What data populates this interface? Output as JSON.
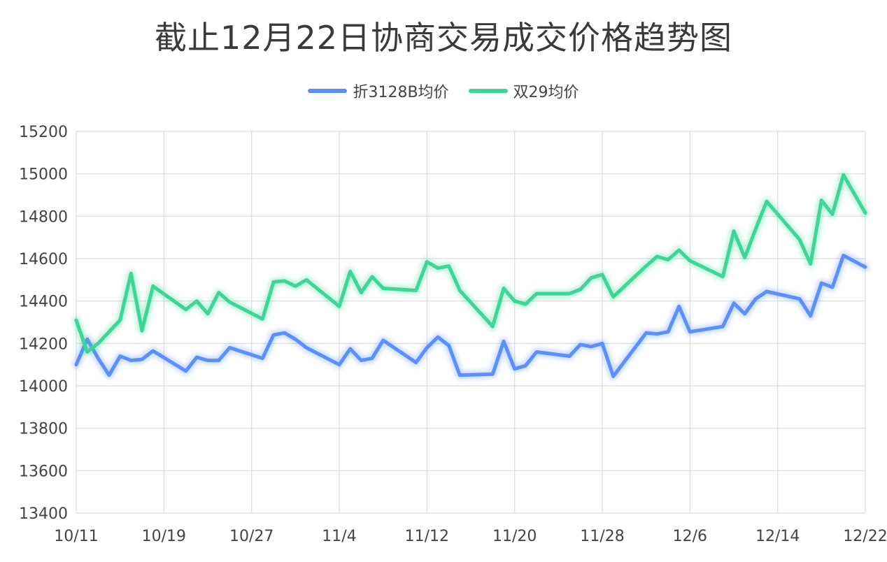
{
  "chart_data": {
    "type": "line",
    "title": "截止12月22日协商交易成交价格趋势图",
    "ylim": [
      13400,
      15200
    ],
    "yticks": [
      13400,
      13600,
      13800,
      14000,
      14200,
      14400,
      14600,
      14800,
      15000,
      15200
    ],
    "xlim": [
      "10/11",
      "12/22"
    ],
    "xticks": [
      "10/11",
      "10/19",
      "10/27",
      "11/4",
      "11/12",
      "11/20",
      "11/28",
      "12/6",
      "12/14",
      "12/22"
    ],
    "grid": true,
    "legend_position": "top-center",
    "series": [
      {
        "name": "折3128B均价",
        "color": "#5b8ff9",
        "points": [
          [
            "10/11",
            14100
          ],
          [
            "10/12",
            14220
          ],
          [
            "10/13",
            14130
          ],
          [
            "10/14",
            14050
          ],
          [
            "10/15",
            14140
          ],
          [
            "10/16",
            14120
          ],
          [
            "10/17",
            14125
          ],
          [
            "10/18",
            14165
          ],
          [
            "10/21",
            14070
          ],
          [
            "10/22",
            14135
          ],
          [
            "10/23",
            14120
          ],
          [
            "10/24",
            14120
          ],
          [
            "10/25",
            14180
          ],
          [
            "10/28",
            14130
          ],
          [
            "10/29",
            14240
          ],
          [
            "10/30",
            14250
          ],
          [
            "10/31",
            14220
          ],
          [
            "11/1",
            14180
          ],
          [
            "11/4",
            14100
          ],
          [
            "11/5",
            14175
          ],
          [
            "11/6",
            14120
          ],
          [
            "11/7",
            14130
          ],
          [
            "11/8",
            14215
          ],
          [
            "11/11",
            14110
          ],
          [
            "11/12",
            14180
          ],
          [
            "11/13",
            14230
          ],
          [
            "11/14",
            14190
          ],
          [
            "11/15",
            14050
          ],
          [
            "11/18",
            14055
          ],
          [
            "11/19",
            14210
          ],
          [
            "11/20",
            14080
          ],
          [
            "11/21",
            14095
          ],
          [
            "11/22",
            14160
          ],
          [
            "11/25",
            14140
          ],
          [
            "11/26",
            14195
          ],
          [
            "11/27",
            14185
          ],
          [
            "11/28",
            14200
          ],
          [
            "11/29",
            14045
          ],
          [
            "12/2",
            14250
          ],
          [
            "12/3",
            14245
          ],
          [
            "12/4",
            14255
          ],
          [
            "12/5",
            14375
          ],
          [
            "12/6",
            14255
          ],
          [
            "12/9",
            14280
          ],
          [
            "12/10",
            14390
          ],
          [
            "12/11",
            14340
          ],
          [
            "12/12",
            14410
          ],
          [
            "12/13",
            14445
          ],
          [
            "12/16",
            14410
          ],
          [
            "12/17",
            14330
          ],
          [
            "12/18",
            14485
          ],
          [
            "12/19",
            14465
          ],
          [
            "12/20",
            14615
          ],
          [
            "12/23",
            14560
          ]
        ]
      },
      {
        "name": "双29均价",
        "color": "#3dd598",
        "points": [
          [
            "10/11",
            14310
          ],
          [
            "10/12",
            14160
          ],
          [
            "10/13",
            14200
          ],
          [
            "10/15",
            14310
          ],
          [
            "10/16",
            14530
          ],
          [
            "10/17",
            14260
          ],
          [
            "10/18",
            14470
          ],
          [
            "10/21",
            14360
          ],
          [
            "10/22",
            14400
          ],
          [
            "10/23",
            14340
          ],
          [
            "10/24",
            14440
          ],
          [
            "10/25",
            14395
          ],
          [
            "10/28",
            14315
          ],
          [
            "10/29",
            14490
          ],
          [
            "10/30",
            14495
          ],
          [
            "10/31",
            14470
          ],
          [
            "11/1",
            14500
          ],
          [
            "11/4",
            14375
          ],
          [
            "11/5",
            14540
          ],
          [
            "11/6",
            14440
          ],
          [
            "11/7",
            14515
          ],
          [
            "11/8",
            14460
          ],
          [
            "11/11",
            14450
          ],
          [
            "11/12",
            14585
          ],
          [
            "11/13",
            14555
          ],
          [
            "11/14",
            14565
          ],
          [
            "11/15",
            14450
          ],
          [
            "11/18",
            14280
          ],
          [
            "11/19",
            14460
          ],
          [
            "11/20",
            14400
          ],
          [
            "11/21",
            14385
          ],
          [
            "11/22",
            14435
          ],
          [
            "11/25",
            14435
          ],
          [
            "11/26",
            14455
          ],
          [
            "11/27",
            14510
          ],
          [
            "11/28",
            14525
          ],
          [
            "11/29",
            14420
          ],
          [
            "12/2",
            14565
          ],
          [
            "12/3",
            14610
          ],
          [
            "12/4",
            14595
          ],
          [
            "12/5",
            14640
          ],
          [
            "12/6",
            14590
          ],
          [
            "12/9",
            14515
          ],
          [
            "12/10",
            14730
          ],
          [
            "12/11",
            14605
          ],
          [
            "12/12",
            14740
          ],
          [
            "12/13",
            14870
          ],
          [
            "12/16",
            14690
          ],
          [
            "12/17",
            14575
          ],
          [
            "12/18",
            14875
          ],
          [
            "12/19",
            14810
          ],
          [
            "12/20",
            14995
          ],
          [
            "12/23",
            14815
          ]
        ]
      }
    ]
  }
}
